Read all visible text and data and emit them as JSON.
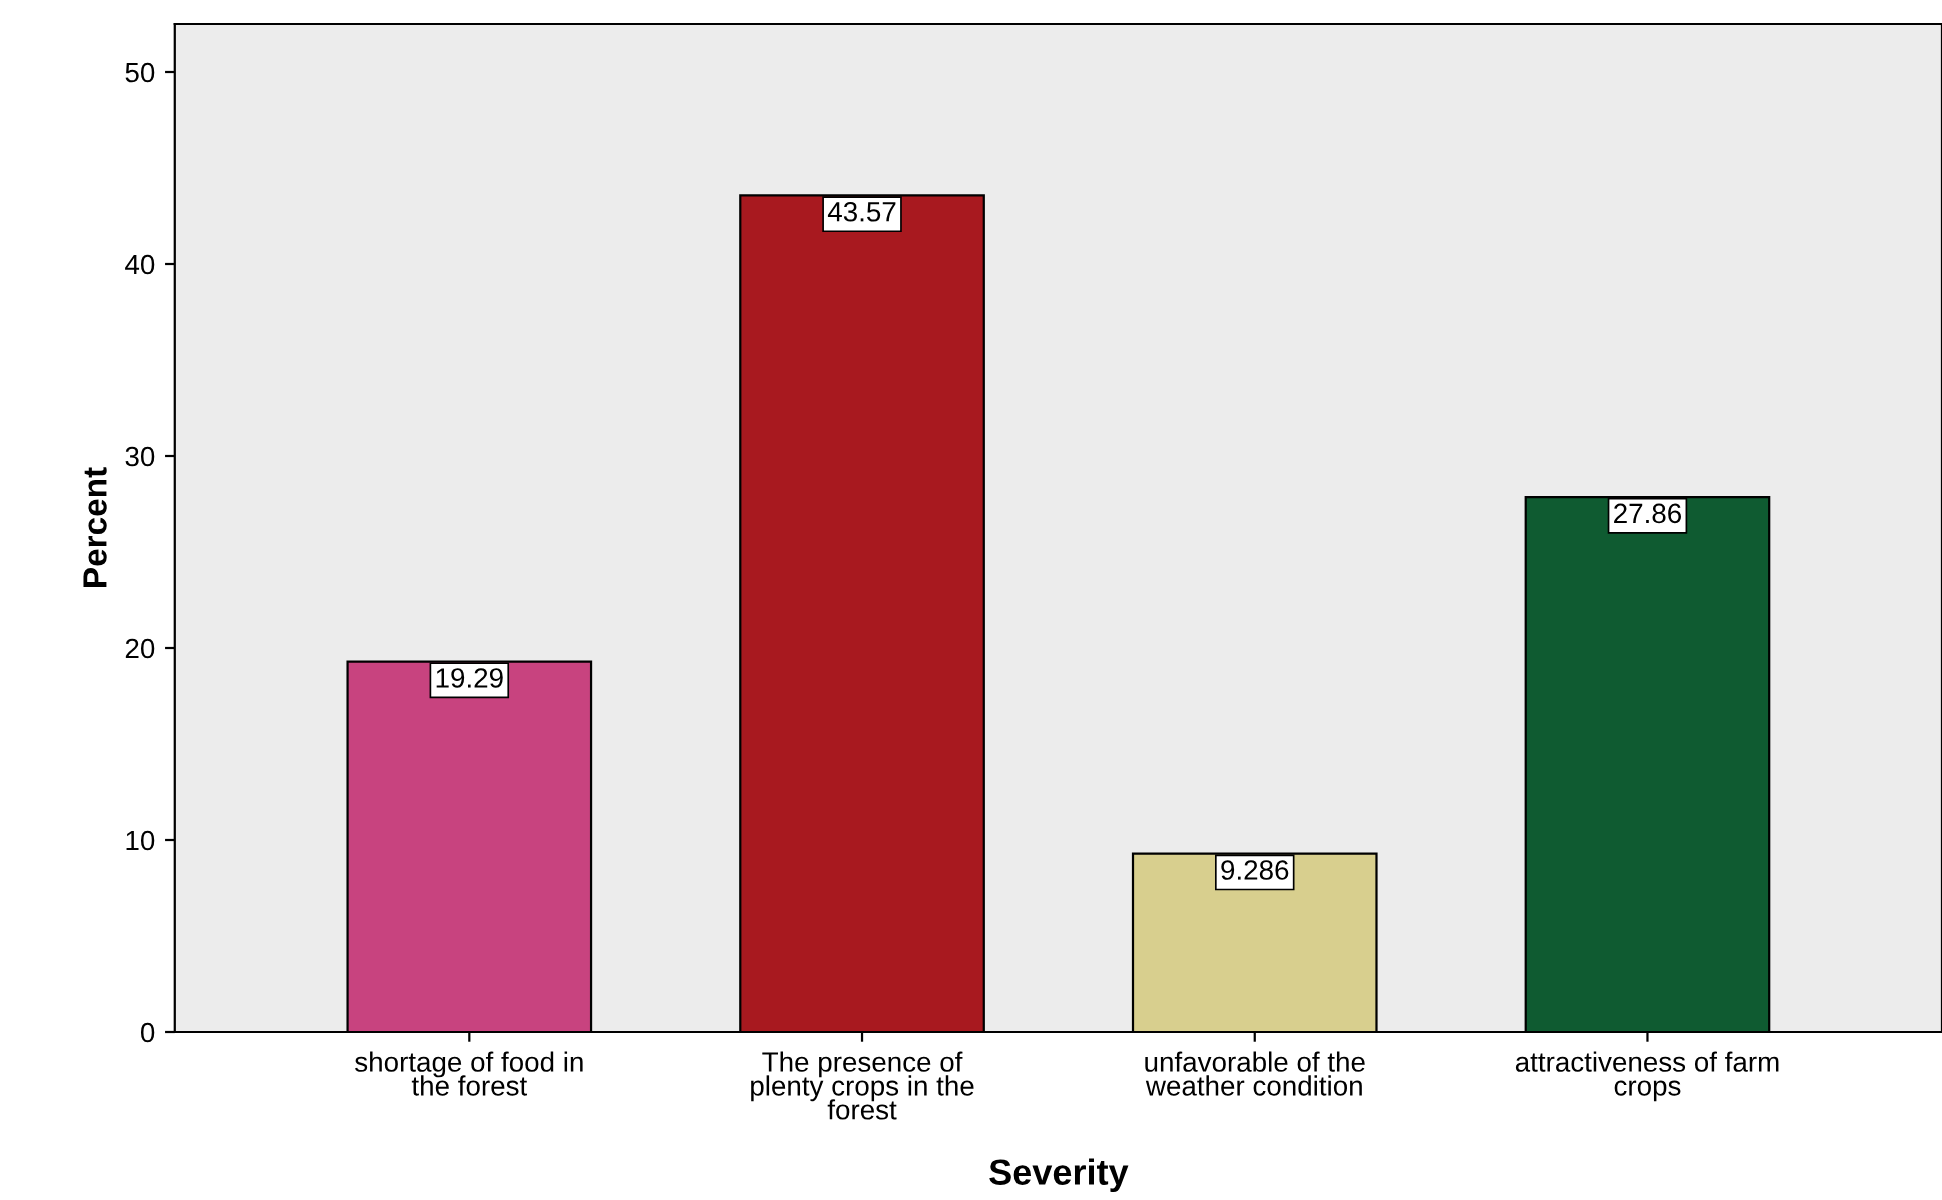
{
  "chart_data": {
    "type": "bar",
    "xlabel": "Severity",
    "ylabel": "Percent",
    "categories": [
      "shortage of food in\nthe forest",
      "The presence of\nplenty crops in the\nforest",
      "unfavorable of the\nweather condition",
      "attractiveness of farm\ncrops"
    ],
    "values": [
      19.29,
      43.57,
      9.286,
      27.86
    ],
    "colors": [
      "#c8437f",
      "#a8191f",
      "#d8cf8e",
      "#0f5b31"
    ],
    "ylim": [
      0,
      52.5
    ],
    "yticks": [
      0,
      10,
      20,
      30,
      40,
      50
    ],
    "grid": false,
    "data_labels": true
  }
}
